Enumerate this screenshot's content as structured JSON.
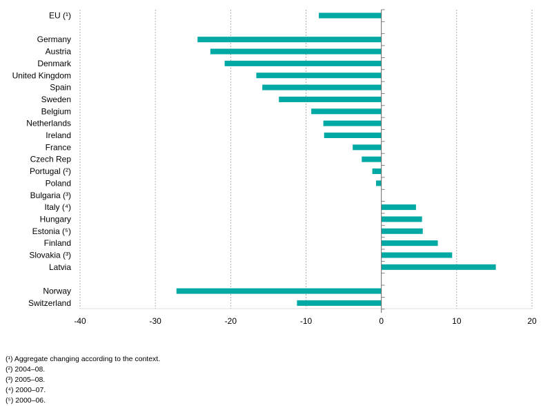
{
  "colors": {
    "bar": "#00a9a4",
    "grid": "#9a9a9a",
    "axis": "#666666"
  },
  "chart_data": {
    "type": "bar",
    "orientation": "horizontal",
    "categories": [
      "EU (¹)",
      "",
      "Germany",
      "Austria",
      "Denmark",
      "United Kingdom",
      "Spain",
      "Sweden",
      "Belgium",
      "Netherlands",
      "Ireland",
      "France",
      "Czech Rep",
      "Portugal (²)",
      "Poland",
      "Bulgaria (³)",
      "Italy (⁴)",
      "Hungary",
      "Estonia (⁵)",
      "Finland",
      "Slovakia (³)",
      "Latvia",
      "",
      "Norway",
      "Switzerland"
    ],
    "values": [
      -8.3,
      null,
      -24.4,
      -22.7,
      -20.8,
      -16.6,
      -15.8,
      -13.6,
      -9.3,
      -7.7,
      -7.6,
      -3.8,
      -2.6,
      -1.2,
      -0.7,
      0,
      4.6,
      5.4,
      5.5,
      7.5,
      9.4,
      15.2,
      null,
      -27.2,
      -11.2
    ],
    "xlim": [
      -40,
      20
    ],
    "xticks": [
      "-40",
      "-30",
      "-20",
      "-10",
      "0",
      "10",
      "20"
    ],
    "grid": "vertical dashed"
  },
  "footnotes": [
    "(¹) Aggregate changing according to the context.",
    "(²) 2004–08.",
    "(³) 2005–08.",
    "(⁴) 2000–07.",
    "(⁵) 2000–06."
  ]
}
